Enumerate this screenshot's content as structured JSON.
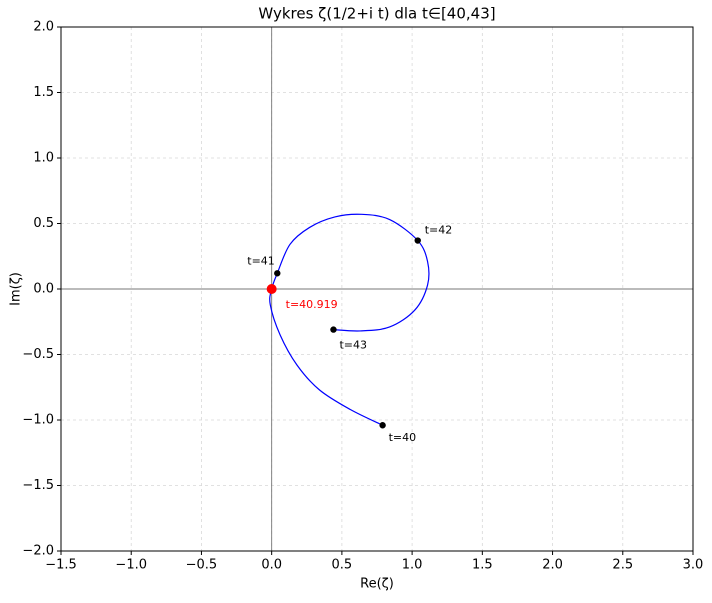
{
  "chart_data": {
    "type": "line",
    "title": "Wykres ζ(1/2+i t) dla t∈[40,43]",
    "xlabel": "Re(ζ)",
    "ylabel": "Im(ζ)",
    "series": [
      {
        "color": "#0000ff",
        "x": [
          0.79,
          0.56,
          0.34,
          0.18,
          0.06,
          -0.01,
          0.0,
          0.04,
          0.13,
          0.27,
          0.45,
          0.64,
          0.84,
          1.04,
          1.11,
          1.11,
          1.02,
          0.84,
          0.63,
          0.44
        ],
        "values": [
          -1.04,
          -0.92,
          -0.77,
          -0.58,
          -0.35,
          -0.12,
          0.0,
          0.12,
          0.34,
          0.47,
          0.55,
          0.57,
          0.53,
          0.37,
          0.21,
          0.03,
          -0.16,
          -0.29,
          -0.32,
          -0.31
        ]
      }
    ],
    "annotations": [
      {
        "label": "t=40",
        "x": 0.79,
        "y": -1.04,
        "color": "#000000"
      },
      {
        "label": "t=41",
        "x": 0.04,
        "y": 0.12,
        "color": "#000000"
      },
      {
        "label": "t=42",
        "x": 1.04,
        "y": 0.37,
        "color": "#000000"
      },
      {
        "label": "t=43",
        "x": 0.44,
        "y": -0.31,
        "color": "#000000"
      },
      {
        "label": "t=40.919",
        "x": 0.0,
        "y": 0.0,
        "color": "#ff0000"
      }
    ],
    "xlim": [
      -1.5,
      3.0
    ],
    "xticks": [
      {
        "value": -1.5,
        "label": "−1.5"
      },
      {
        "value": -1.0,
        "label": "−1.0"
      },
      {
        "value": -0.5,
        "label": "−0.5"
      },
      {
        "value": 0.0,
        "label": "0.0"
      },
      {
        "value": 0.5,
        "label": "0.5"
      },
      {
        "value": 1.0,
        "label": "1.0"
      },
      {
        "value": 1.5,
        "label": "1.5"
      },
      {
        "value": 2.0,
        "label": "2.0"
      },
      {
        "value": 2.5,
        "label": "2.5"
      },
      {
        "value": 3.0,
        "label": "3.0"
      }
    ],
    "ylim": [
      -2.0,
      2.0
    ],
    "yticks": [
      {
        "value": -2.0,
        "label": "−2.0"
      },
      {
        "value": -1.5,
        "label": "−1.5"
      },
      {
        "value": -1.0,
        "label": "−1.0"
      },
      {
        "value": -0.5,
        "label": "−0.5"
      },
      {
        "value": 0.0,
        "label": "0.0"
      },
      {
        "value": 0.5,
        "label": "0.5"
      },
      {
        "value": 1.0,
        "label": "1.0"
      },
      {
        "value": 1.5,
        "label": "1.5"
      },
      {
        "value": 2.0,
        "label": "2.0"
      }
    ],
    "grid": true,
    "zero_lines": true
  }
}
